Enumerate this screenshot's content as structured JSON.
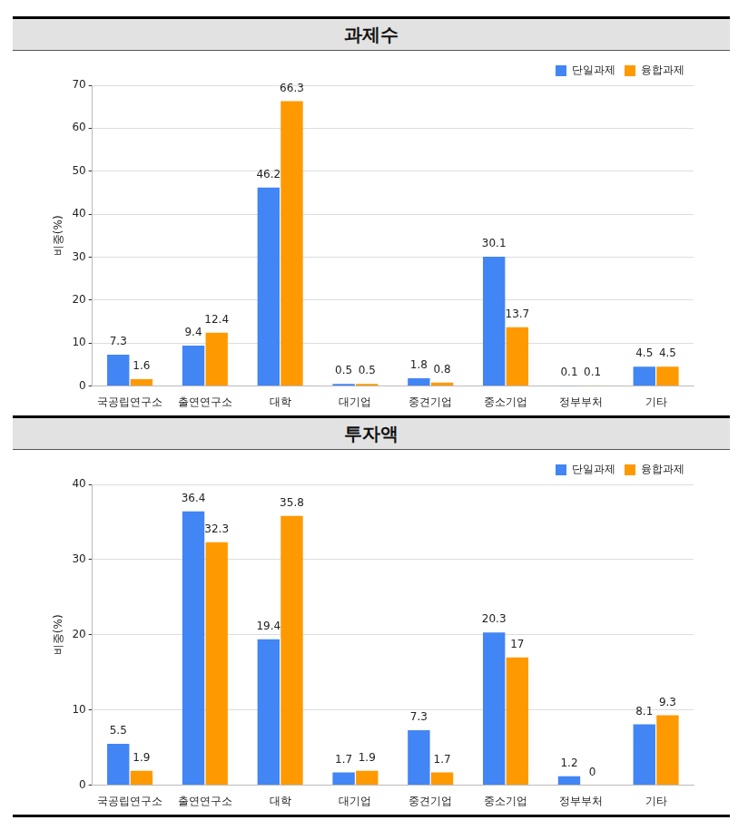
{
  "chart_data": [
    {
      "type": "bar",
      "title": "과제수",
      "y_label": "비중(%)",
      "categories": [
        "국공립연구소",
        "출연연구소",
        "대학",
        "대기업",
        "중견기업",
        "중소기업",
        "정부부처",
        "기타"
      ],
      "series": [
        {
          "name": "단일과제",
          "color": "#4285f4",
          "values": [
            7.3,
            9.4,
            46.2,
            0.5,
            1.8,
            30.1,
            0.1,
            4.5
          ]
        },
        {
          "name": "융합과제",
          "color": "#ff9900",
          "values": [
            1.6,
            12.4,
            66.3,
            0.5,
            0.8,
            13.7,
            0.1,
            4.5
          ]
        }
      ],
      "ylim": [
        0,
        70
      ],
      "yticks": [
        0,
        10,
        20,
        30,
        40,
        50,
        60,
        70
      ],
      "grid": true,
      "legend": "upper right",
      "data_labels": true
    },
    {
      "type": "bar",
      "title": "투자액",
      "y_label": "비중(%)",
      "categories": [
        "국공립연구소",
        "출연연구소",
        "대학",
        "대기업",
        "중견기업",
        "중소기업",
        "정부부처",
        "기타"
      ],
      "series": [
        {
          "name": "단일과제",
          "color": "#4285f4",
          "values": [
            5.5,
            36.4,
            19.4,
            1.7,
            7.3,
            20.3,
            1.2,
            8.1
          ]
        },
        {
          "name": "융합과제",
          "color": "#ff9900",
          "values": [
            1.9,
            32.3,
            35.8,
            1.9,
            1.7,
            17,
            0,
            9.3
          ]
        }
      ],
      "ylim": [
        0,
        40
      ],
      "yticks": [
        0,
        10,
        20,
        30,
        40
      ],
      "grid": true,
      "legend": "upper right",
      "data_labels": true
    }
  ]
}
